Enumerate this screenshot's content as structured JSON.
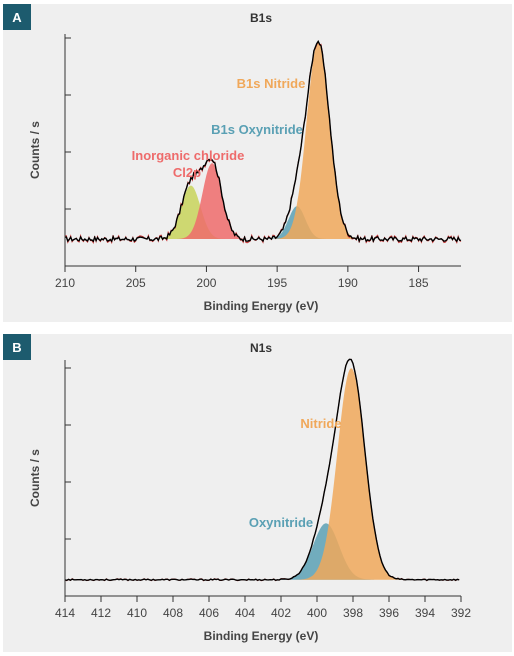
{
  "panels": [
    {
      "label": "A",
      "title": "B1s",
      "xlabel": "Binding Energy (eV)",
      "ylabel": "Counts / s"
    },
    {
      "label": "B",
      "title": "N1s",
      "xlabel": "Binding Energy (eV)",
      "ylabel": "Counts / s"
    }
  ],
  "colors": {
    "badge": "#1d5b6e",
    "nitride": "#f0a85a",
    "oxynitride": "#5aa0b4",
    "chloride_main": "#ee6b6b",
    "chloride_secondary": "#c8d45a",
    "raw_trace": "#c83232",
    "envelope": "#000000"
  },
  "chart_data": [
    {
      "type": "line",
      "title": "B1s",
      "xlabel": "Binding Energy (eV)",
      "ylabel": "Counts / s",
      "x_reversed": true,
      "xlim": [
        210,
        182
      ],
      "xticks": [
        "210",
        "205",
        "200",
        "195",
        "190",
        "185"
      ],
      "y_ticks_unlabeled": 4,
      "baseline": 0.22,
      "peaks": [
        {
          "label": "B1s Nitride",
          "center": 192.1,
          "height": 2.28,
          "fwhm": 1.9,
          "color": "#f0a85a"
        },
        {
          "label": "B1s Oxynitride",
          "center": 193.6,
          "height": 0.38,
          "fwhm": 1.4,
          "color": "#5aa0b4"
        },
        {
          "label": "Inorganic chloride Cl2p",
          "center": 199.6,
          "height": 0.88,
          "fwhm": 1.6,
          "color": "#ee6b6b"
        },
        {
          "label": "",
          "center": 201.1,
          "height": 0.62,
          "fwhm": 1.6,
          "color": "#c8d45a"
        }
      ],
      "annotations": [
        "B1s Nitride",
        "B1s Oxynitride",
        "Inorganic chloride",
        "Cl2p"
      ]
    },
    {
      "type": "line",
      "title": "N1s",
      "xlabel": "Binding Energy (eV)",
      "ylabel": "Counts / s",
      "x_reversed": true,
      "xlim": [
        414,
        392
      ],
      "xticks": [
        "414",
        "412",
        "410",
        "408",
        "406",
        "404",
        "402",
        "400",
        "398",
        "396",
        "394",
        "392"
      ],
      "y_ticks_unlabeled": 4,
      "baseline": 0.1,
      "peaks": [
        {
          "label": "Nitride",
          "center": 398.1,
          "height": 2.55,
          "fwhm": 1.8,
          "color": "#f0a85a"
        },
        {
          "label": "Oxynitride",
          "center": 399.5,
          "height": 0.68,
          "fwhm": 1.7,
          "color": "#5aa0b4"
        }
      ],
      "annotations": [
        "Nitride",
        "Oxynitride"
      ]
    }
  ]
}
